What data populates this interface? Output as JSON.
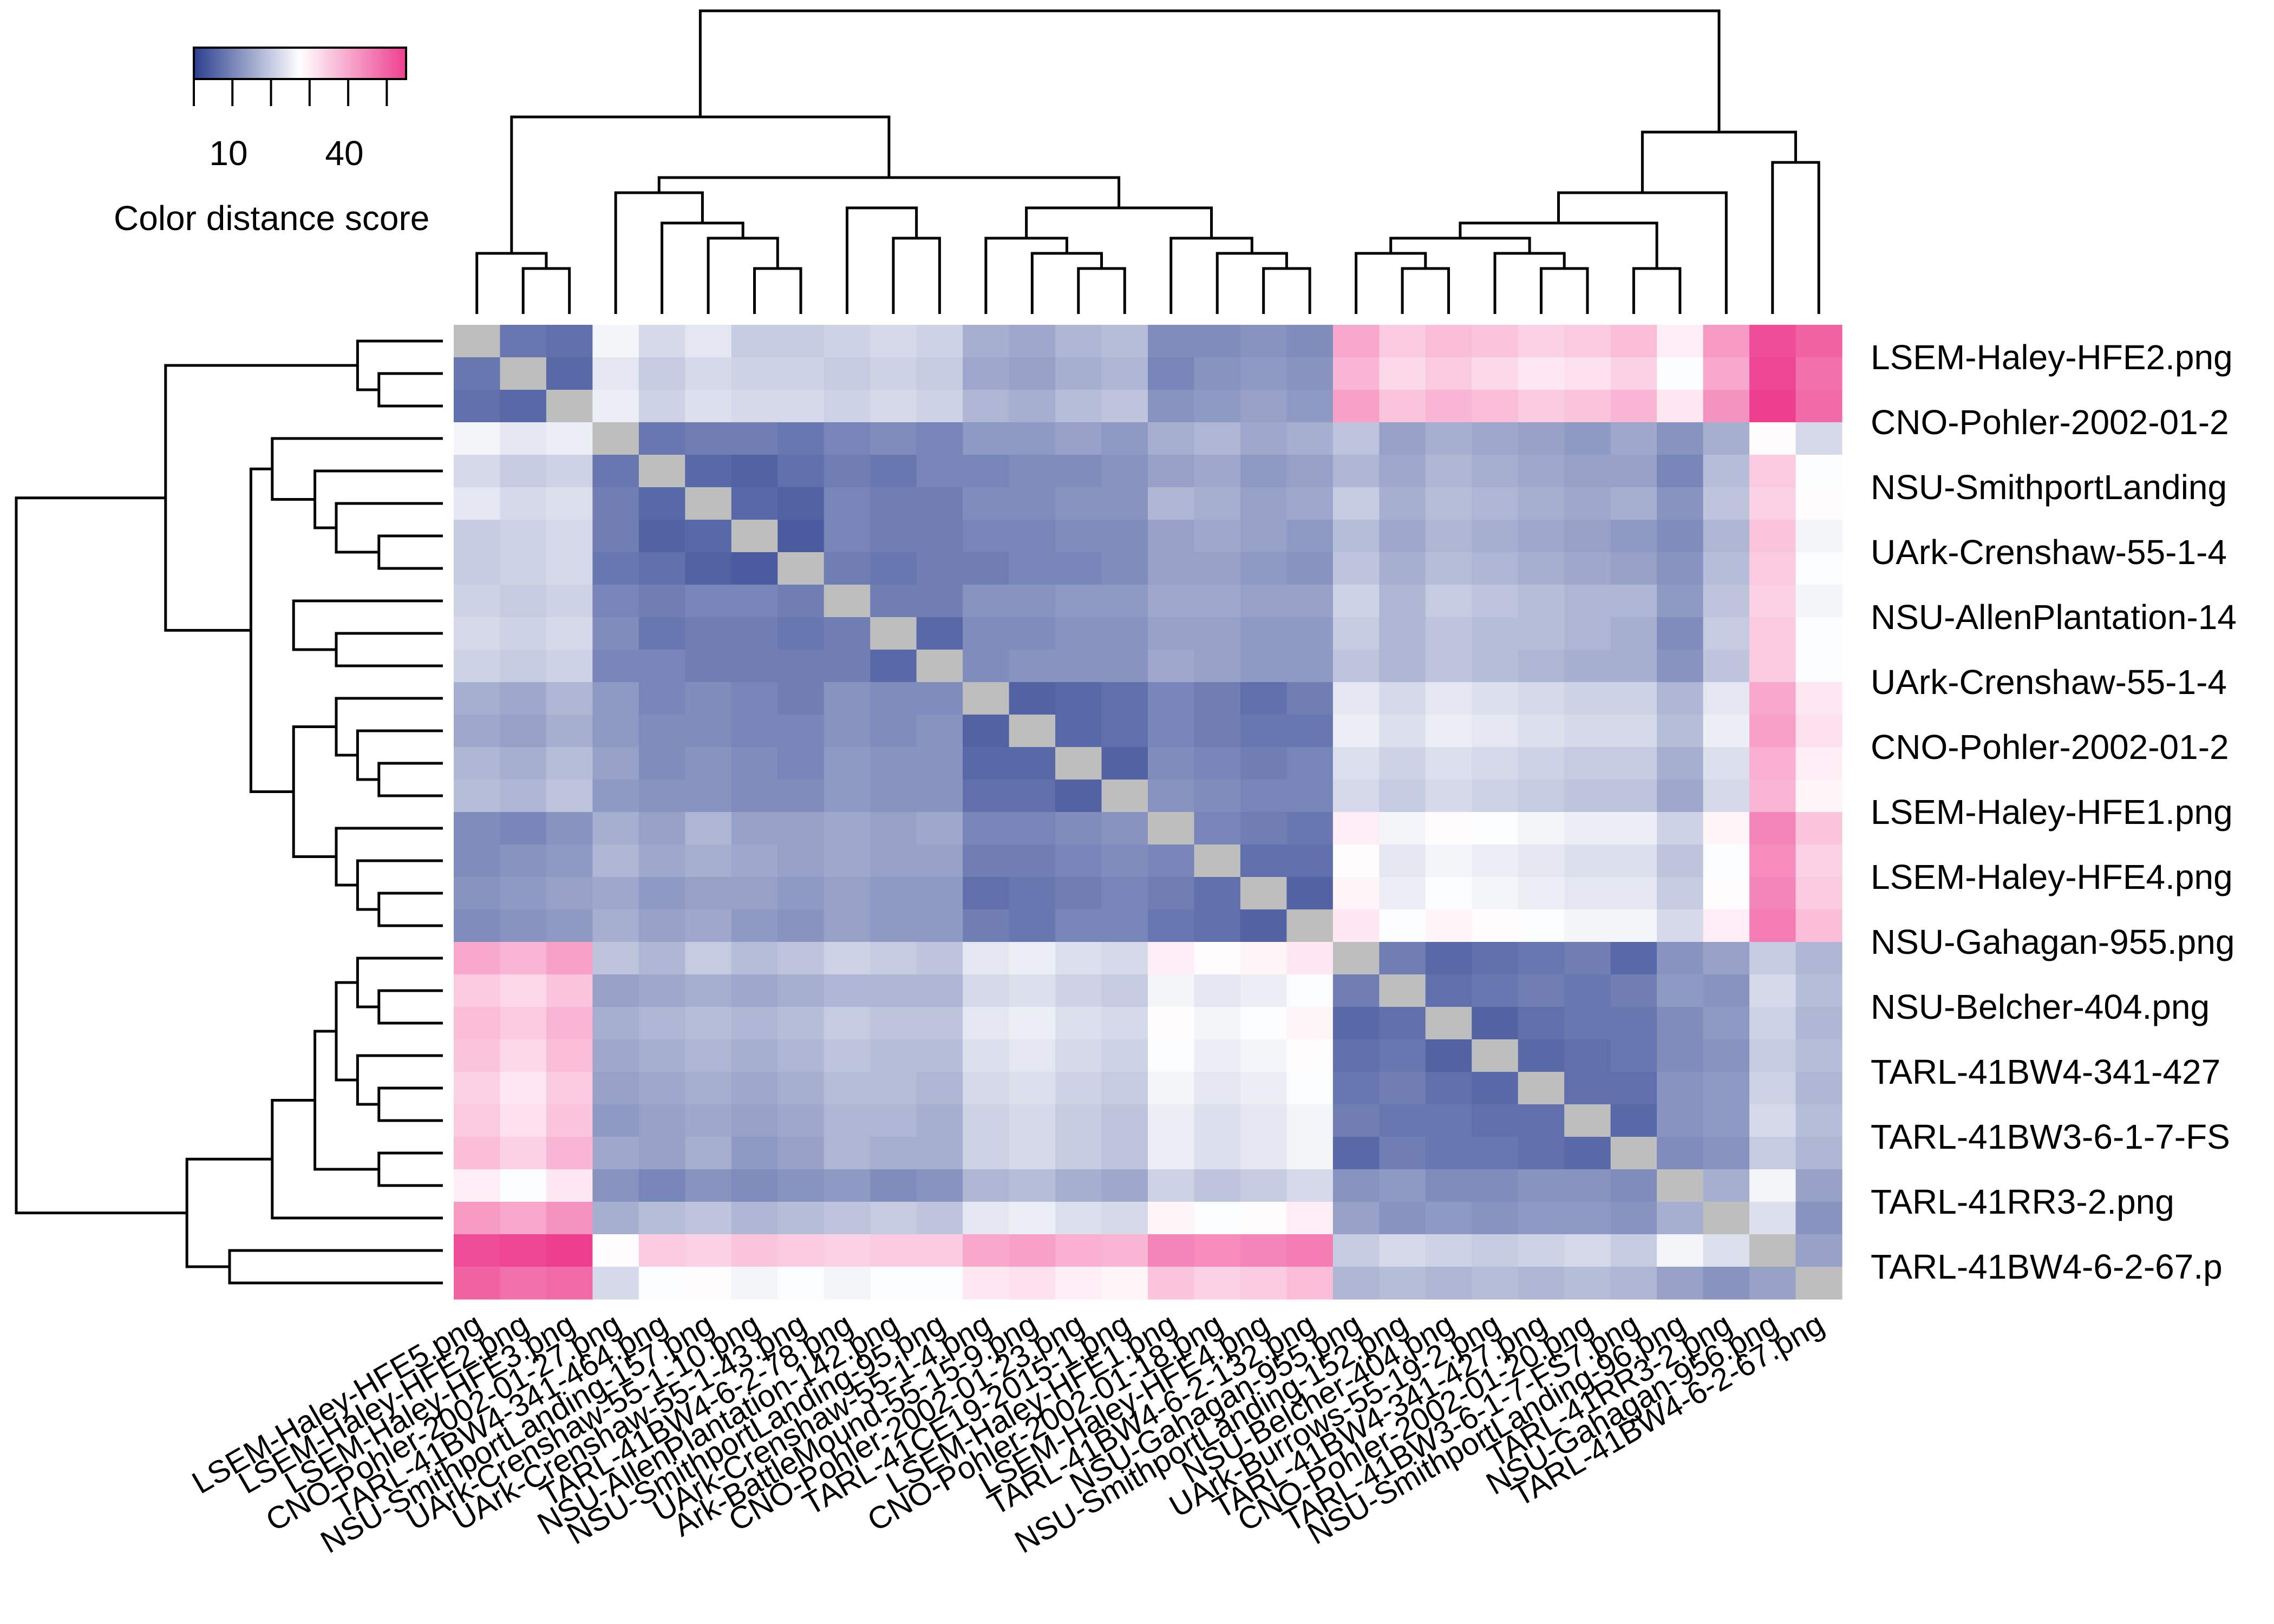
{
  "chart_data": {
    "type": "heatmap",
    "title": "",
    "legend": {
      "title": "Color distance score",
      "tick_labels": [
        "10",
        "40"
      ],
      "min": 0,
      "max": 55,
      "placement": "top-left",
      "colors": [
        "#2b3f8f",
        "#ffffff",
        "#ee3f8f"
      ]
    },
    "missing_color": "#bebebe",
    "row_labels": [
      "LSEM-Haley-HFE2.png",
      "CNO-Pohler-2002-01-2",
      "NSU-SmithportLanding",
      "UArk-Crenshaw-55-1-4",
      "NSU-AllenPlantation-14",
      "UArk-Crenshaw-55-1-4",
      "CNO-Pohler-2002-01-2",
      "LSEM-Haley-HFE1.png",
      "LSEM-Haley-HFE4.png",
      "NSU-Gahagan-955.png",
      "NSU-Belcher-404.png",
      "TARL-41BW4-341-427",
      "TARL-41BW3-6-1-7-FS",
      "TARL-41RR3-2.png",
      "TARL-41BW4-6-2-67.p"
    ],
    "column_labels": [
      "LSEM-Haley-HFE5.png",
      "LSEM-Haley-HFE2.png",
      "LSEM-Haley-HFE3.png",
      "CNO-Pohler-2002-01-27.png",
      "TARL-41BW4-341-464.png",
      "NSU-SmithportLanding-157.png",
      "UArk-Crenshaw-55-1-10.png",
      "UArk-Crenshaw-55-1-43.png",
      "TARL-41BW4-6-2-78.png",
      "NSU-AllenPlantation-142.png",
      "NSU-SmithportLanding-95.png",
      "UArk-Crenshaw-55-1-4.png",
      "Ark-BattleMound-55-15-9.png",
      "CNO-Pohler-2002-01-23.png",
      "TARL-41CE19-2015-1.png",
      "LSEM-Haley-HFE1.png",
      "CNO-Pohler-2002-01-18.png",
      "LSEM-Haley-HFE4.png",
      "TARL-41BW4-6-2-132.png",
      "NSU-Gahagan-955.png",
      "NSU-SmithportLanding-152.png",
      "NSU-Belcher-404.png",
      "UArk-Burrows-55-19-2.png",
      "TARL-41BW4-341-427.png",
      "CNO-Pohler-2002-01-20.png",
      "TARL-41BW3-6-1-7-FS7.png",
      "NSU-SmithportLanding-96.png",
      "TARL-41RR3-2.png",
      "NSU-Gahagan-956.png",
      "TARL-41BW4-6-2-67.png"
    ],
    "row_groups": [
      1,
      1,
      1,
      2,
      2,
      2,
      2,
      3,
      3,
      3,
      3,
      4,
      4,
      4,
      4,
      5,
      5,
      5,
      5,
      6,
      6,
      6,
      6,
      6,
      6,
      6,
      6,
      6,
      7,
      7
    ],
    "group_base": [
      [
        null,
        5,
        22,
        26,
        32,
        52
      ],
      [
        5,
        null,
        9,
        14,
        20,
        48
      ],
      [
        22,
        9,
        null,
        13,
        22,
        40
      ],
      [
        26,
        14,
        13,
        null,
        22,
        38
      ],
      [
        32,
        20,
        22,
        22,
        null,
        44
      ],
      [
        52,
        48,
        40,
        38,
        44,
        null
      ]
    ],
    "values": [
      [
        null,
        8,
        7,
        26,
        22,
        24,
        20,
        20,
        21,
        22,
        21,
        16,
        15,
        17,
        18,
        11,
        11,
        12,
        11,
        40,
        35,
        37,
        36,
        34,
        35,
        37,
        30,
        42,
        53,
        50
      ],
      [
        8,
        null,
        6,
        24,
        20,
        22,
        21,
        21,
        20,
        21,
        20,
        15,
        14,
        16,
        17,
        10,
        12,
        13,
        12,
        38,
        33,
        35,
        33,
        31,
        32,
        34,
        27,
        40,
        54,
        48
      ],
      [
        7,
        6,
        null,
        25,
        21,
        23,
        22,
        22,
        21,
        22,
        21,
        17,
        16,
        18,
        19,
        12,
        13,
        14,
        13,
        41,
        36,
        38,
        37,
        35,
        36,
        38,
        31,
        43,
        55,
        49
      ],
      [
        26,
        24,
        25,
        null,
        8,
        9,
        9,
        8,
        10,
        11,
        10,
        13,
        13,
        14,
        13,
        16,
        17,
        15,
        16,
        19,
        14,
        16,
        15,
        14,
        13,
        15,
        12,
        16,
        28,
        22
      ],
      [
        22,
        20,
        21,
        8,
        null,
        6,
        5,
        7,
        9,
        8,
        10,
        10,
        11,
        11,
        12,
        14,
        15,
        13,
        14,
        17,
        15,
        17,
        16,
        15,
        14,
        14,
        10,
        18,
        35,
        27
      ],
      [
        24,
        22,
        23,
        9,
        6,
        null,
        6,
        5,
        10,
        9,
        9,
        11,
        11,
        12,
        12,
        17,
        16,
        14,
        15,
        20,
        16,
        18,
        17,
        16,
        15,
        16,
        12,
        19,
        34,
        28
      ],
      [
        20,
        21,
        22,
        9,
        5,
        6,
        null,
        4,
        10,
        9,
        9,
        10,
        10,
        11,
        11,
        14,
        15,
        14,
        13,
        18,
        15,
        17,
        16,
        15,
        14,
        13,
        11,
        17,
        36,
        26
      ],
      [
        20,
        21,
        22,
        8,
        7,
        5,
        4,
        null,
        9,
        8,
        9,
        9,
        10,
        10,
        11,
        14,
        14,
        13,
        12,
        19,
        16,
        18,
        17,
        16,
        15,
        14,
        12,
        18,
        35,
        27
      ],
      [
        21,
        20,
        21,
        10,
        9,
        10,
        10,
        9,
        null,
        9,
        9,
        12,
        12,
        13,
        13,
        15,
        15,
        14,
        14,
        21,
        17,
        20,
        19,
        18,
        17,
        17,
        13,
        19,
        34,
        26
      ],
      [
        22,
        21,
        22,
        11,
        8,
        9,
        9,
        8,
        9,
        null,
        6,
        11,
        11,
        12,
        12,
        14,
        14,
        13,
        13,
        20,
        17,
        19,
        18,
        18,
        17,
        16,
        11,
        20,
        35,
        27
      ],
      [
        21,
        20,
        21,
        10,
        10,
        9,
        9,
        9,
        9,
        6,
        null,
        11,
        12,
        12,
        12,
        15,
        14,
        13,
        13,
        19,
        17,
        19,
        18,
        17,
        16,
        16,
        12,
        19,
        35,
        27
      ],
      [
        16,
        15,
        17,
        13,
        10,
        11,
        10,
        9,
        12,
        11,
        11,
        null,
        5,
        6,
        7,
        10,
        9,
        7,
        9,
        24,
        22,
        24,
        23,
        22,
        21,
        21,
        17,
        24,
        40,
        31
      ],
      [
        15,
        14,
        16,
        13,
        11,
        11,
        10,
        10,
        12,
        11,
        12,
        5,
        null,
        6,
        7,
        10,
        9,
        8,
        8,
        25,
        23,
        25,
        24,
        23,
        22,
        22,
        18,
        25,
        41,
        32
      ],
      [
        17,
        16,
        18,
        14,
        11,
        12,
        11,
        10,
        13,
        12,
        12,
        6,
        6,
        null,
        5,
        11,
        10,
        9,
        10,
        23,
        21,
        23,
        22,
        21,
        20,
        20,
        16,
        23,
        39,
        30
      ],
      [
        18,
        17,
        19,
        13,
        12,
        12,
        11,
        11,
        13,
        12,
        12,
        7,
        7,
        5,
        null,
        12,
        11,
        10,
        10,
        22,
        20,
        22,
        21,
        20,
        19,
        19,
        15,
        22,
        38,
        29
      ],
      [
        11,
        10,
        12,
        16,
        14,
        17,
        14,
        14,
        15,
        14,
        15,
        10,
        10,
        11,
        12,
        null,
        10,
        9,
        8,
        30,
        26,
        28,
        27,
        26,
        25,
        25,
        21,
        29,
        45,
        36
      ],
      [
        11,
        12,
        13,
        17,
        15,
        16,
        15,
        14,
        15,
        14,
        14,
        9,
        9,
        10,
        11,
        10,
        null,
        7,
        7,
        28,
        24,
        26,
        25,
        24,
        23,
        23,
        19,
        27,
        44,
        34
      ],
      [
        12,
        13,
        14,
        15,
        13,
        14,
        14,
        13,
        14,
        13,
        13,
        7,
        8,
        9,
        10,
        9,
        7,
        null,
        5,
        29,
        25,
        27,
        26,
        25,
        24,
        24,
        20,
        28,
        45,
        35
      ],
      [
        11,
        12,
        13,
        16,
        14,
        15,
        13,
        12,
        14,
        13,
        13,
        9,
        8,
        10,
        10,
        8,
        7,
        5,
        null,
        31,
        27,
        29,
        28,
        27,
        26,
        26,
        22,
        30,
        46,
        37
      ],
      [
        40,
        38,
        41,
        19,
        17,
        20,
        18,
        19,
        21,
        20,
        19,
        24,
        25,
        23,
        22,
        30,
        28,
        29,
        31,
        null,
        9,
        6,
        7,
        8,
        9,
        6,
        12,
        14,
        20,
        17
      ],
      [
        35,
        33,
        36,
        14,
        15,
        16,
        15,
        16,
        17,
        17,
        17,
        22,
        23,
        21,
        20,
        26,
        24,
        25,
        27,
        9,
        null,
        7,
        8,
        9,
        8,
        9,
        13,
        12,
        22,
        18
      ],
      [
        37,
        35,
        38,
        16,
        17,
        18,
        17,
        18,
        20,
        19,
        19,
        24,
        25,
        23,
        22,
        28,
        26,
        27,
        29,
        6,
        7,
        null,
        5,
        7,
        8,
        8,
        11,
        13,
        21,
        17
      ],
      [
        36,
        33,
        37,
        15,
        16,
        17,
        16,
        17,
        19,
        18,
        18,
        23,
        24,
        22,
        21,
        27,
        25,
        26,
        28,
        7,
        8,
        5,
        null,
        6,
        7,
        8,
        11,
        12,
        20,
        18
      ],
      [
        34,
        31,
        35,
        14,
        15,
        16,
        15,
        16,
        18,
        18,
        17,
        22,
        23,
        21,
        20,
        26,
        24,
        25,
        27,
        8,
        9,
        7,
        6,
        null,
        7,
        7,
        12,
        13,
        21,
        17
      ],
      [
        35,
        32,
        36,
        13,
        14,
        15,
        14,
        15,
        17,
        17,
        16,
        21,
        22,
        20,
        19,
        25,
        23,
        24,
        26,
        9,
        8,
        8,
        7,
        7,
        null,
        6,
        12,
        13,
        22,
        18
      ],
      [
        37,
        34,
        38,
        15,
        14,
        16,
        13,
        14,
        17,
        16,
        16,
        21,
        22,
        20,
        19,
        25,
        23,
        24,
        26,
        6,
        9,
        8,
        8,
        7,
        6,
        null,
        11,
        12,
        20,
        17
      ],
      [
        30,
        27,
        31,
        12,
        10,
        12,
        11,
        12,
        13,
        11,
        12,
        17,
        18,
        16,
        15,
        21,
        19,
        20,
        22,
        12,
        13,
        11,
        11,
        12,
        12,
        11,
        null,
        16,
        26,
        14
      ],
      [
        42,
        40,
        43,
        16,
        18,
        19,
        17,
        18,
        19,
        20,
        19,
        24,
        25,
        23,
        22,
        29,
        27,
        28,
        30,
        14,
        12,
        13,
        12,
        13,
        13,
        12,
        16,
        null,
        23,
        12
      ],
      [
        53,
        54,
        55,
        28,
        35,
        34,
        36,
        35,
        34,
        35,
        35,
        40,
        41,
        39,
        38,
        45,
        44,
        45,
        46,
        20,
        22,
        21,
        20,
        21,
        22,
        20,
        26,
        23,
        null,
        14
      ],
      [
        50,
        48,
        49,
        22,
        27,
        28,
        26,
        27,
        26,
        27,
        27,
        31,
        32,
        30,
        29,
        36,
        34,
        35,
        37,
        17,
        18,
        17,
        18,
        17,
        18,
        17,
        14,
        12,
        14,
        null
      ]
    ],
    "dendrogram_merges": [
      [
        1,
        2,
        3
      ],
      [
        0,
        1,
        4
      ],
      [
        6,
        7,
        3
      ],
      [
        5,
        6,
        5
      ],
      [
        4,
        5,
        6
      ],
      [
        3,
        4,
        8
      ],
      [
        9,
        10,
        5
      ],
      [
        8,
        9,
        7
      ],
      [
        13,
        14,
        3
      ],
      [
        12,
        13,
        4
      ],
      [
        11,
        12,
        5
      ],
      [
        17,
        18,
        3
      ],
      [
        16,
        17,
        4
      ],
      [
        15,
        16,
        5
      ],
      [
        11,
        15,
        7
      ],
      [
        3,
        11,
        9
      ],
      [
        0,
        3,
        13
      ],
      [
        20,
        21,
        3
      ],
      [
        19,
        20,
        4
      ],
      [
        23,
        24,
        3
      ],
      [
        22,
        23,
        4
      ],
      [
        19,
        22,
        5
      ],
      [
        25,
        26,
        3
      ],
      [
        19,
        25,
        6
      ],
      [
        19,
        27,
        8
      ],
      [
        28,
        29,
        10
      ],
      [
        19,
        28,
        12
      ],
      [
        0,
        19,
        20
      ]
    ]
  }
}
